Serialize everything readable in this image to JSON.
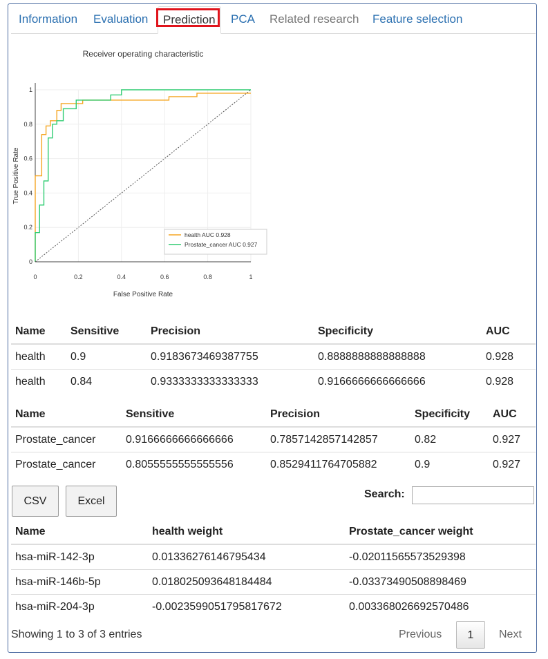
{
  "tabs": [
    {
      "label": "Information",
      "state": "normal"
    },
    {
      "label": "Evaluation",
      "state": "normal"
    },
    {
      "label": "Prediction",
      "state": "active"
    },
    {
      "label": "PCA",
      "state": "normal"
    },
    {
      "label": "Related research",
      "state": "disabled"
    },
    {
      "label": "Feature selection",
      "state": "normal"
    }
  ],
  "chart_data": {
    "type": "line",
    "title": "Receiver operating characteristic",
    "xlabel": "False Positive Rate",
    "ylabel": "True Positive Rate",
    "xlim": [
      0,
      1
    ],
    "ylim": [
      0,
      1
    ],
    "x_ticks": [
      "0",
      "0.2",
      "0.4",
      "0.6",
      "0.8",
      "1"
    ],
    "y_ticks": [
      "0",
      "0.2",
      "0.4",
      "0.6",
      "0.8",
      "1"
    ],
    "grid": true,
    "legend_position": "bottom-right",
    "series": [
      {
        "name": "health AUC 0.928",
        "color": "#f5a623",
        "x": [
          0,
          0,
          0.03,
          0.03,
          0.05,
          0.05,
          0.07,
          0.07,
          0.1,
          0.1,
          0.12,
          0.12,
          0.15,
          0.15,
          0.22,
          0.22,
          0.55,
          0.55,
          0.62,
          0.62,
          0.75,
          0.75,
          1
        ],
        "y": [
          0,
          0.5,
          0.5,
          0.74,
          0.74,
          0.79,
          0.79,
          0.82,
          0.82,
          0.88,
          0.88,
          0.92,
          0.92,
          0.92,
          0.92,
          0.94,
          0.94,
          0.94,
          0.94,
          0.96,
          0.96,
          0.98,
          0.98
        ]
      },
      {
        "name": "Prostate_cancer AUC 0.927",
        "color": "#2ecc71",
        "x": [
          0,
          0,
          0.02,
          0.02,
          0.04,
          0.04,
          0.06,
          0.06,
          0.08,
          0.08,
          0.1,
          0.1,
          0.13,
          0.13,
          0.19,
          0.19,
          0.35,
          0.35,
          0.4,
          0.4,
          1
        ],
        "y": [
          0,
          0.17,
          0.17,
          0.33,
          0.33,
          0.47,
          0.47,
          0.72,
          0.72,
          0.8,
          0.8,
          0.82,
          0.82,
          0.89,
          0.89,
          0.94,
          0.94,
          0.97,
          0.97,
          1,
          1
        ]
      },
      {
        "name": "",
        "color": "#555555",
        "style": "dotted",
        "x": [
          0,
          1
        ],
        "y": [
          0,
          1
        ]
      }
    ]
  },
  "table_health": {
    "headers": [
      "Name",
      "Sensitive",
      "Precision",
      "Specificity",
      "AUC"
    ],
    "rows": [
      [
        "health",
        "0.9",
        "0.9183673469387755",
        "0.8888888888888888",
        "0.928"
      ],
      [
        "health",
        "0.84",
        "0.9333333333333333",
        "0.9166666666666666",
        "0.928"
      ]
    ]
  },
  "table_cancer": {
    "headers": [
      "Name",
      "Sensitive",
      "Precision",
      "Specificity",
      "AUC"
    ],
    "rows": [
      [
        "Prostate_cancer",
        "0.9166666666666666",
        "0.7857142857142857",
        "0.82",
        "0.927"
      ],
      [
        "Prostate_cancer",
        "0.8055555555555556",
        "0.8529411764705882",
        "0.9",
        "0.927"
      ]
    ]
  },
  "buttons": {
    "csv": "CSV",
    "excel": "Excel"
  },
  "search": {
    "label": "Search:",
    "value": "",
    "placeholder": ""
  },
  "weights_table": {
    "headers": [
      "Name",
      "health weight",
      "Prostate_cancer weight"
    ],
    "rows": [
      [
        "hsa-miR-142-3p",
        "0.01336276146795434",
        "-0.02011565573529398"
      ],
      [
        "hsa-miR-146b-5p",
        "0.018025093648184484",
        "-0.03373490508898469"
      ],
      [
        "hsa-miR-204-3p",
        "-0.0023599051795817672",
        "0.003368026692570486"
      ]
    ]
  },
  "pagination": {
    "info": "Showing 1 to 3 of 3 entries",
    "previous": "Previous",
    "current_page": "1",
    "next": "Next"
  }
}
